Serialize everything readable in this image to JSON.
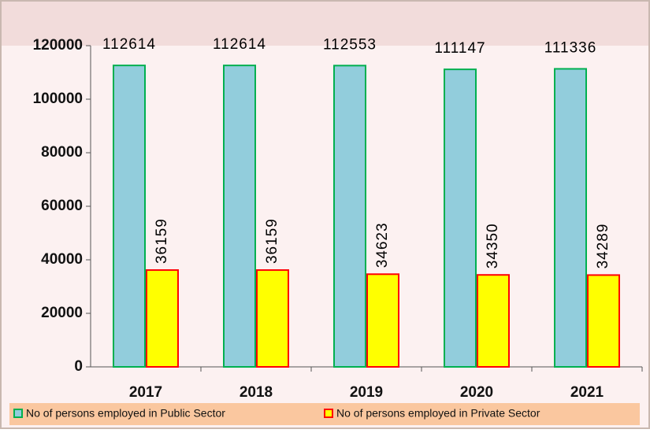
{
  "chart_data": {
    "type": "bar",
    "categories": [
      "2017",
      "2018",
      "2019",
      "2020",
      "2021"
    ],
    "series": [
      {
        "name": "No of persons employed in Public Sector",
        "color": "#92cddc",
        "stroke": "#00b050",
        "values": [
          112614,
          112614,
          112553,
          111147,
          111336
        ]
      },
      {
        "name": "No of persons employed in Private Sector",
        "color": "#ffff00",
        "stroke": "#ff0000",
        "values": [
          36159,
          36159,
          34623,
          34350,
          34289
        ]
      }
    ],
    "ylim": [
      0,
      120000
    ],
    "yticks": [
      0,
      20000,
      40000,
      60000,
      80000,
      100000,
      120000
    ],
    "legend": "bottom"
  }
}
